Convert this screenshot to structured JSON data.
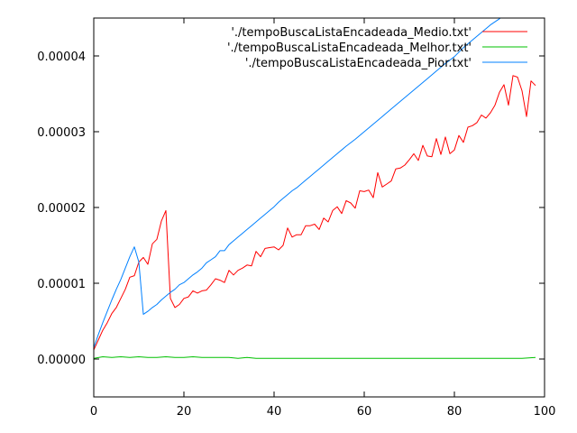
{
  "chart_data": {
    "type": "line",
    "title": "",
    "xlabel": "",
    "ylabel": "",
    "xlim": [
      0,
      100
    ],
    "ylim": [
      -5e-06,
      4.5e-05
    ],
    "x_ticks": [
      0,
      20,
      40,
      60,
      80,
      100
    ],
    "x_tick_labels": [
      "0",
      "20",
      "40",
      "60",
      "80",
      "100"
    ],
    "y_ticks": [
      0,
      1e-05,
      2e-05,
      3e-05,
      4e-05
    ],
    "y_tick_labels": [
      "0.00000",
      "0.00001",
      "0.00002",
      "0.00003",
      "0.00004"
    ],
    "grid": false,
    "legend_position": "top-right",
    "series": [
      {
        "name": "'./tempoBuscaListaEncadeada_Medio.txt'",
        "color": "#ff0000",
        "x": [
          0,
          1,
          2,
          3,
          4,
          5,
          6,
          7,
          8,
          9,
          10,
          11,
          12,
          13,
          14,
          15,
          16,
          17,
          18,
          19,
          20,
          21,
          22,
          23,
          24,
          25,
          26,
          27,
          28,
          29,
          30,
          31,
          32,
          33,
          34,
          35,
          36,
          37,
          38,
          39,
          40,
          41,
          42,
          43,
          44,
          45,
          46,
          47,
          48,
          49,
          50,
          51,
          52,
          53,
          54,
          55,
          56,
          57,
          58,
          59,
          60,
          61,
          62,
          63,
          64,
          65,
          66,
          67,
          68,
          69,
          70,
          71,
          72,
          73,
          74,
          75,
          76,
          77,
          78,
          79,
          80,
          81,
          82,
          83,
          84,
          85,
          86,
          87,
          88,
          89,
          90,
          91,
          92,
          93,
          94,
          95,
          96,
          97,
          98
        ],
        "y": [
          1.2e-06,
          2.5e-06,
          3.8e-06,
          4.8e-06,
          6e-06,
          6.8e-06,
          8e-06,
          9.2e-06,
          1.08e-05,
          1.1e-05,
          1.28e-05,
          1.34e-05,
          1.25e-05,
          1.52e-05,
          1.58e-05,
          1.82e-05,
          1.96e-05,
          8e-06,
          6.8e-06,
          7.2e-06,
          8e-06,
          8.2e-06,
          9e-06,
          8.7e-06,
          9e-06,
          9.1e-06,
          9.8e-06,
          1.06e-05,
          1.04e-05,
          1.01e-05,
          1.17e-05,
          1.11e-05,
          1.17e-05,
          1.2e-05,
          1.24e-05,
          1.23e-05,
          1.42e-05,
          1.35e-05,
          1.46e-05,
          1.47e-05,
          1.48e-05,
          1.44e-05,
          1.5e-05,
          1.73e-05,
          1.61e-05,
          1.64e-05,
          1.64e-05,
          1.76e-05,
          1.76e-05,
          1.78e-05,
          1.71e-05,
          1.86e-05,
          1.81e-05,
          1.96e-05,
          2.01e-05,
          1.92e-05,
          2.09e-05,
          2.06e-05,
          1.99e-05,
          2.22e-05,
          2.21e-05,
          2.23e-05,
          2.13e-05,
          2.46e-05,
          2.27e-05,
          2.31e-05,
          2.35e-05,
          2.51e-05,
          2.52e-05,
          2.56e-05,
          2.63e-05,
          2.71e-05,
          2.62e-05,
          2.82e-05,
          2.68e-05,
          2.67e-05,
          2.91e-05,
          2.7e-05,
          2.93e-05,
          2.71e-05,
          2.76e-05,
          2.95e-05,
          2.86e-05,
          3.06e-05,
          3.08e-05,
          3.12e-05,
          3.22e-05,
          3.18e-05,
          3.25e-05,
          3.35e-05,
          3.52e-05,
          3.62e-05,
          3.35e-05,
          3.74e-05,
          3.72e-05,
          3.54e-05,
          3.2e-05,
          3.67e-05,
          3.61e-05
        ]
      },
      {
        "name": "'./tempoBuscaListaEncadeada_Melhor.txt'",
        "color": "#00c000",
        "x": [
          0,
          2,
          4,
          6,
          8,
          10,
          12,
          14,
          16,
          18,
          20,
          22,
          24,
          26,
          28,
          30,
          32,
          34,
          36,
          38,
          40,
          45,
          50,
          55,
          60,
          65,
          70,
          75,
          80,
          85,
          90,
          95,
          98
        ],
        "y": [
          1e-07,
          3e-07,
          2e-07,
          3e-07,
          2e-07,
          3e-07,
          2e-07,
          2e-07,
          3e-07,
          2e-07,
          2e-07,
          3e-07,
          2e-07,
          2e-07,
          2e-07,
          2e-07,
          1e-07,
          2e-07,
          1e-07,
          1e-07,
          1e-07,
          1e-07,
          1e-07,
          1e-07,
          1e-07,
          1e-07,
          1e-07,
          1e-07,
          1e-07,
          1e-07,
          1e-07,
          1e-07,
          2e-07
        ]
      },
      {
        "name": "'./tempoBuscaListaEncadeada_Pior.txt'",
        "color": "#0080ff",
        "x": [
          0,
          1,
          2,
          3,
          4,
          5,
          6,
          7,
          8,
          9,
          10,
          11,
          12,
          13,
          14,
          15,
          16,
          17,
          18,
          19,
          20,
          21,
          22,
          23,
          24,
          25,
          26,
          27,
          28,
          29,
          30,
          31,
          32,
          33,
          34,
          35,
          36,
          37,
          38,
          39,
          40,
          41,
          42,
          43,
          44,
          45,
          46,
          47,
          48,
          49,
          50,
          52,
          54,
          56,
          58,
          60,
          62,
          64,
          66,
          68,
          70,
          72,
          74,
          76,
          78,
          80,
          82,
          84,
          86,
          88,
          90,
          91,
          92
        ],
        "y": [
          1.5e-06,
          3.2e-06,
          4.8e-06,
          6.3e-06,
          7.8e-06,
          9.2e-06,
          1.05e-05,
          1.2e-05,
          1.35e-05,
          1.48e-05,
          1.28e-05,
          5.9e-06,
          6.3e-06,
          6.8e-06,
          7.2e-06,
          7.8e-06,
          8.3e-06,
          8.8e-06,
          9.2e-06,
          9.8e-06,
          1.01e-05,
          1.06e-05,
          1.11e-05,
          1.15e-05,
          1.2e-05,
          1.27e-05,
          1.31e-05,
          1.35e-05,
          1.43e-05,
          1.43e-05,
          1.51e-05,
          1.56e-05,
          1.61e-05,
          1.66e-05,
          1.71e-05,
          1.76e-05,
          1.81e-05,
          1.86e-05,
          1.91e-05,
          1.96e-05,
          2.01e-05,
          2.07e-05,
          2.12e-05,
          2.17e-05,
          2.22e-05,
          2.26e-05,
          2.31e-05,
          2.36e-05,
          2.41e-05,
          2.46e-05,
          2.51e-05,
          2.61e-05,
          2.71e-05,
          2.81e-05,
          2.9e-05,
          3e-05,
          3.1e-05,
          3.2e-05,
          3.3e-05,
          3.4e-05,
          3.5e-05,
          3.6e-05,
          3.7e-05,
          3.8e-05,
          3.9e-05,
          3.99e-05,
          4.11e-05,
          4.21e-05,
          4.31e-05,
          4.41e-05,
          4.49e-05,
          4.54e-05,
          4.6e-05
        ]
      }
    ]
  }
}
